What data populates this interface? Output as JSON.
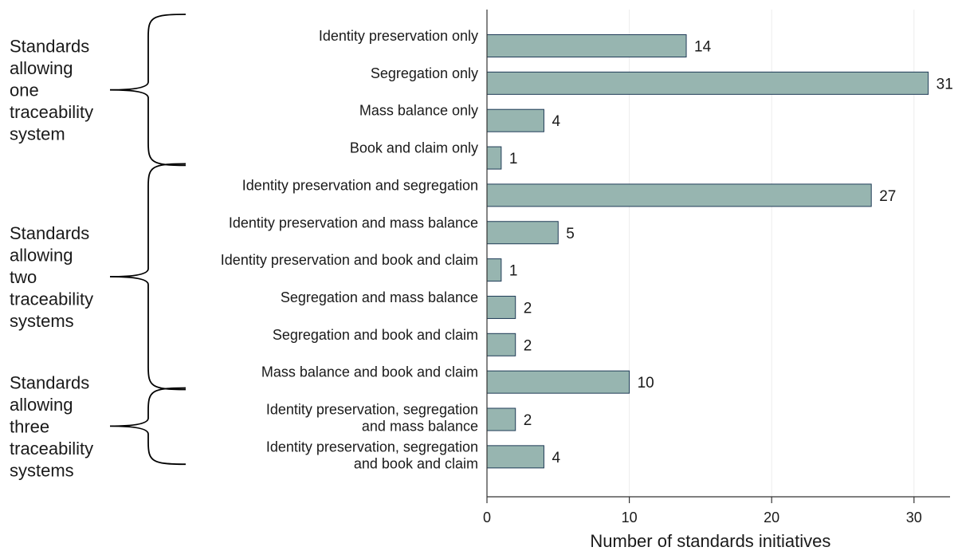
{
  "chart_data": {
    "type": "bar",
    "orientation": "horizontal",
    "xlabel": "Number of standards initiatives",
    "ylabel": "",
    "xlim": [
      0,
      32
    ],
    "xticks": [
      0,
      10,
      20,
      30
    ],
    "grid": true,
    "bar_color": "#97b5b0",
    "bar_edge_color": "#1f3b57",
    "categories": [
      [
        "Identity preservation only"
      ],
      [
        "Segregation only"
      ],
      [
        "Mass balance only"
      ],
      [
        "Book and claim only"
      ],
      [
        "Identity preservation and segregation"
      ],
      [
        "Identity preservation and mass balance"
      ],
      [
        "Identity preservation and book and claim"
      ],
      [
        "Segregation and mass balance"
      ],
      [
        "Segregation and book and claim"
      ],
      [
        "Mass balance and book and claim"
      ],
      [
        "Identity preservation, segregation",
        "and mass balance"
      ],
      [
        "Identity preservation, segregation",
        "and book and claim"
      ]
    ],
    "values": [
      14,
      31,
      4,
      1,
      27,
      5,
      1,
      2,
      2,
      10,
      2,
      4
    ],
    "groups": [
      {
        "label_lines": [
          "Standards",
          "allowing",
          "one",
          "traceability",
          "system"
        ],
        "start": 0,
        "end": 3
      },
      {
        "label_lines": [
          "Standards",
          "allowing",
          "two",
          "traceability",
          "systems"
        ],
        "start": 4,
        "end": 9
      },
      {
        "label_lines": [
          "Standards",
          "allowing",
          "three",
          "traceability",
          "systems"
        ],
        "start": 10,
        "end": 11
      }
    ]
  }
}
